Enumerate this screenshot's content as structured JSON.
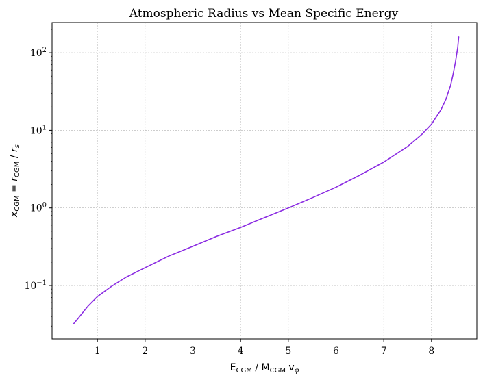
{
  "chart_data": {
    "type": "line",
    "title": "Atmospheric Radius vs Mean Specific Energy",
    "xlabel": {
      "E": "E",
      "E_sub": "CGM",
      "sep": " / ",
      "M": "M",
      "M_sub": "CGM",
      "v": " v",
      "v_sub": "φ"
    },
    "ylabel": {
      "x": "x",
      "x_sub": "CGM",
      "eq": " = ",
      "r": "r",
      "r_sub": "CGM",
      "sep": " / ",
      "rs": "r",
      "rs_sub": "s"
    },
    "x_scale": "linear",
    "y_scale": "log",
    "xlim": [
      0.05,
      8.95
    ],
    "ylim": [
      0.0205,
      245
    ],
    "x_ticks": [
      1,
      2,
      3,
      4,
      5,
      6,
      7,
      8
    ],
    "y_ticks": [
      {
        "value": 0.1,
        "base": "10",
        "exp": "−1"
      },
      {
        "value": 1,
        "base": "10",
        "exp": "0"
      },
      {
        "value": 10,
        "base": "10",
        "exp": "1"
      },
      {
        "value": 100,
        "base": "10",
        "exp": "2"
      }
    ],
    "grid": true,
    "series": [
      {
        "color": "#8a2be2",
        "x": [
          0.5,
          0.6,
          0.8,
          1.0,
          1.3,
          1.6,
          2.0,
          2.5,
          3.0,
          3.5,
          4.0,
          4.5,
          5.0,
          5.5,
          6.0,
          6.5,
          7.0,
          7.5,
          7.8,
          8.0,
          8.2,
          8.3,
          8.4,
          8.45,
          8.5,
          8.55,
          8.57
        ],
        "y": [
          0.032,
          0.038,
          0.054,
          0.072,
          0.098,
          0.128,
          0.17,
          0.24,
          0.32,
          0.43,
          0.56,
          0.75,
          1.0,
          1.35,
          1.85,
          2.65,
          3.9,
          6.2,
          8.9,
          12.0,
          18.5,
          25.0,
          38.0,
          52.0,
          75.0,
          118.0,
          160.0
        ]
      }
    ]
  }
}
